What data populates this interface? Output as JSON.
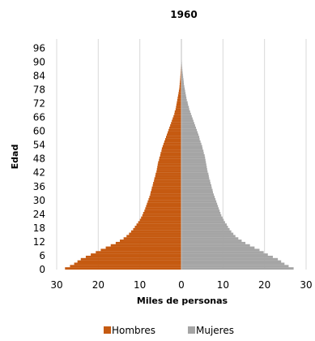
{
  "chart_data": {
    "type": "bar",
    "orientation": "horizontal-pyramid",
    "title": "1960",
    "xlabel": "Miles de personas",
    "ylabel": "Edad",
    "xlim": [
      -30,
      30
    ],
    "ylim": [
      0,
      100
    ],
    "x_ticks": [
      -30,
      -20,
      -10,
      0,
      10,
      20,
      30
    ],
    "x_tick_labels": [
      "30",
      "20",
      "10",
      "0",
      "10",
      "20",
      "30"
    ],
    "y_ticks": [
      0,
      6,
      12,
      18,
      24,
      30,
      36,
      42,
      48,
      54,
      60,
      66,
      72,
      78,
      84,
      90,
      96
    ],
    "y_tick_labels": [
      "0",
      "6",
      "12",
      "18",
      "24",
      "30",
      "36",
      "42",
      "48",
      "54",
      "60",
      "66",
      "72",
      "78",
      "84",
      "90",
      "96"
    ],
    "grid": "vertical",
    "legend_position": "bottom",
    "colors": {
      "hombres": "#C55A11",
      "mujeres": "#A5A5A5",
      "grid": "#D9D9D9"
    },
    "ages": [
      0,
      1,
      2,
      3,
      4,
      5,
      6,
      7,
      8,
      9,
      10,
      11,
      12,
      13,
      14,
      15,
      16,
      17,
      18,
      19,
      20,
      21,
      22,
      23,
      24,
      25,
      26,
      27,
      28,
      29,
      30,
      31,
      32,
      33,
      34,
      35,
      36,
      37,
      38,
      39,
      40,
      41,
      42,
      43,
      44,
      45,
      46,
      47,
      48,
      49,
      50,
      51,
      52,
      53,
      54,
      55,
      56,
      57,
      58,
      59,
      60,
      61,
      62,
      63,
      64,
      65,
      66,
      67,
      68,
      69,
      70,
      71,
      72,
      73,
      74,
      75,
      76,
      77,
      78,
      79,
      80,
      81,
      82,
      83,
      84,
      85,
      86,
      87,
      88,
      89,
      90,
      91,
      92,
      93,
      94,
      95,
      96,
      97,
      98,
      99
    ],
    "series": [
      {
        "name": "Hombres",
        "values": [
          28.0,
          26.8,
          25.8,
          25.0,
          24.2,
          23.0,
          21.8,
          20.6,
          19.4,
          18.2,
          17.0,
          15.8,
          14.8,
          13.9,
          13.2,
          12.6,
          12.1,
          11.6,
          11.2,
          10.8,
          10.4,
          10.0,
          9.7,
          9.4,
          9.2,
          8.9,
          8.7,
          8.5,
          8.3,
          8.1,
          7.9,
          7.7,
          7.5,
          7.4,
          7.2,
          7.1,
          6.9,
          6.8,
          6.6,
          6.5,
          6.3,
          6.2,
          6.0,
          5.9,
          5.8,
          5.7,
          5.6,
          5.4,
          5.3,
          5.1,
          5.0,
          4.8,
          4.7,
          4.5,
          4.3,
          4.1,
          3.9,
          3.7,
          3.5,
          3.3,
          3.1,
          2.9,
          2.7,
          2.5,
          2.3,
          2.1,
          1.9,
          1.7,
          1.6,
          1.4,
          1.3,
          1.2,
          1.1,
          1.0,
          0.9,
          0.8,
          0.7,
          0.6,
          0.5,
          0.45,
          0.4,
          0.35,
          0.3,
          0.26,
          0.22,
          0.19,
          0.16,
          0.13,
          0.11,
          0.09,
          0.07,
          0.06,
          0.05,
          0.04,
          0.03,
          0.03,
          0.02,
          0.02,
          0.01,
          0.01
        ]
      },
      {
        "name": "Mujeres",
        "values": [
          27.0,
          25.8,
          24.8,
          24.0,
          23.2,
          22.0,
          20.8,
          19.8,
          18.8,
          17.6,
          16.5,
          15.4,
          14.5,
          13.7,
          13.0,
          12.5,
          12.0,
          11.6,
          11.2,
          10.9,
          10.5,
          10.2,
          9.9,
          9.6,
          9.4,
          9.2,
          9.0,
          8.8,
          8.6,
          8.4,
          8.2,
          8.0,
          7.8,
          7.6,
          7.5,
          7.3,
          7.2,
          7.0,
          6.9,
          6.7,
          6.6,
          6.5,
          6.3,
          6.2,
          6.1,
          6.0,
          5.9,
          5.8,
          5.7,
          5.6,
          5.4,
          5.3,
          5.1,
          5.0,
          4.8,
          4.6,
          4.4,
          4.3,
          4.1,
          3.9,
          3.7,
          3.5,
          3.3,
          3.1,
          2.9,
          2.7,
          2.5,
          2.3,
          2.1,
          1.9,
          1.8,
          1.6,
          1.5,
          1.3,
          1.2,
          1.1,
          1.0,
          0.9,
          0.8,
          0.7,
          0.6,
          0.55,
          0.5,
          0.42,
          0.36,
          0.3,
          0.25,
          0.21,
          0.17,
          0.14,
          0.11,
          0.09,
          0.07,
          0.06,
          0.05,
          0.04,
          0.03,
          0.03,
          0.02,
          0.02
        ]
      }
    ]
  }
}
